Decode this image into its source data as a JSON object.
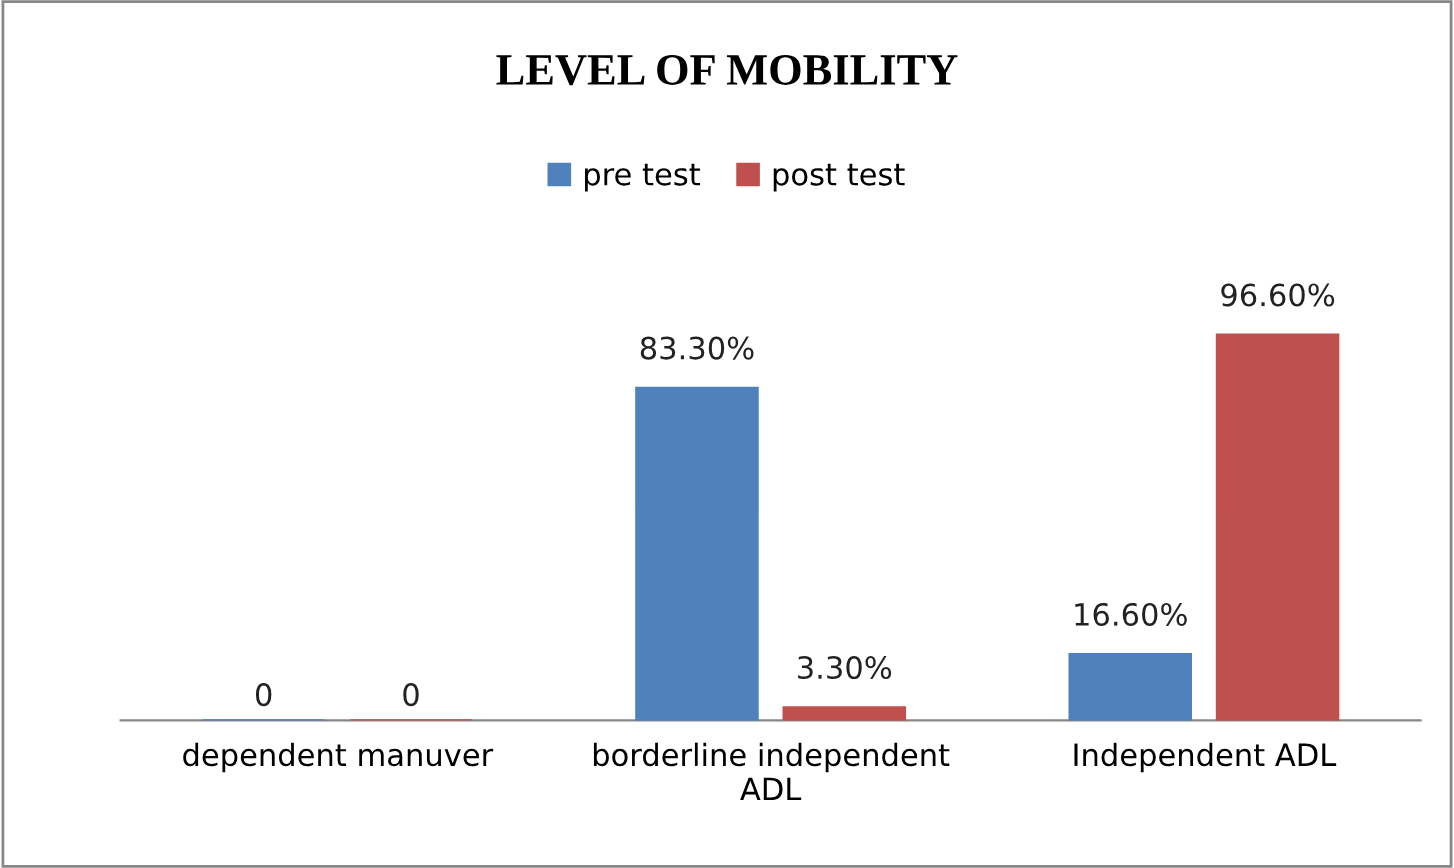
{
  "chart_data": {
    "type": "bar",
    "title": "LEVEL OF MOBILITY",
    "categories": [
      "dependent manuver",
      "borderline independent\nADL",
      "Independent ADL"
    ],
    "series": [
      {
        "name": "pre test",
        "color": "#4f81bd",
        "values": [
          0,
          83.3,
          16.6
        ],
        "value_labels": [
          "0",
          "83.30%",
          "16.60%"
        ]
      },
      {
        "name": "post test",
        "color": "#c0504d",
        "values": [
          0,
          3.3,
          96.6
        ],
        "value_labels": [
          "0",
          "3.30%",
          "96.60%"
        ]
      }
    ],
    "legend": "top"
  }
}
